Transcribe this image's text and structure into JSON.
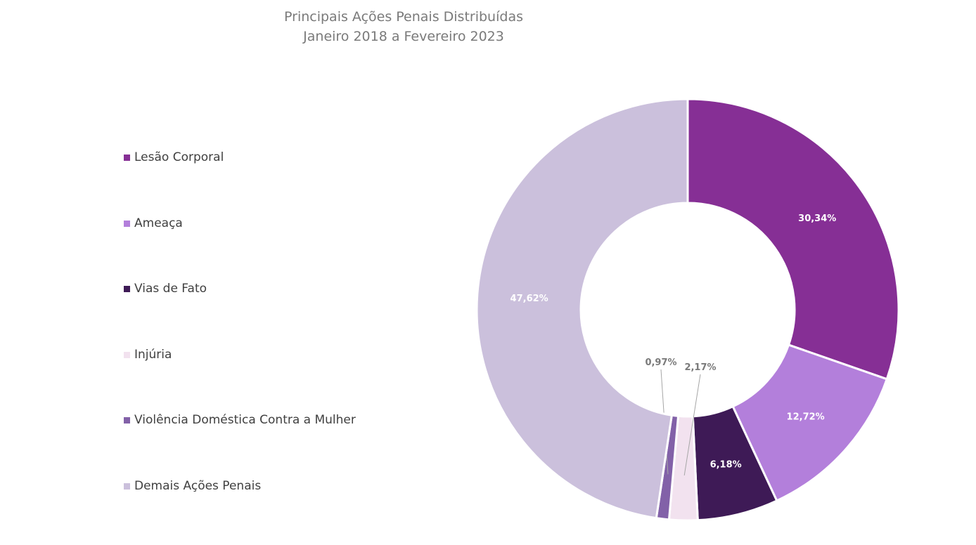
{
  "chart_data": {
    "type": "pie",
    "title": "Principais Ações Penais Distribuídas",
    "subtitle": "Janeiro 2018 a Fevereiro 2023",
    "donut": true,
    "legend_position": "left",
    "categories": [
      "Lesão Corporal",
      "Ameaça",
      "Vias de Fato",
      "Injúria",
      "Violência Doméstica Contra a Mulher",
      "Demais Ações Penais"
    ],
    "values": [
      30.34,
      12.72,
      6.18,
      2.17,
      0.97,
      47.62
    ],
    "labels": [
      "30,34%",
      "12,72%",
      "6,18%",
      "2,17%",
      "0,97%",
      "47,62%"
    ],
    "colors": [
      "#862f95",
      "#b37fdb",
      "#3e1a56",
      "#f2e2ef",
      "#8261a8",
      "#cbc0dc"
    ],
    "label_colors": [
      "#ffffff",
      "#ffffff",
      "#ffffff",
      "#7a7a7a",
      "#7a7a7a",
      "#ffffff"
    ]
  }
}
